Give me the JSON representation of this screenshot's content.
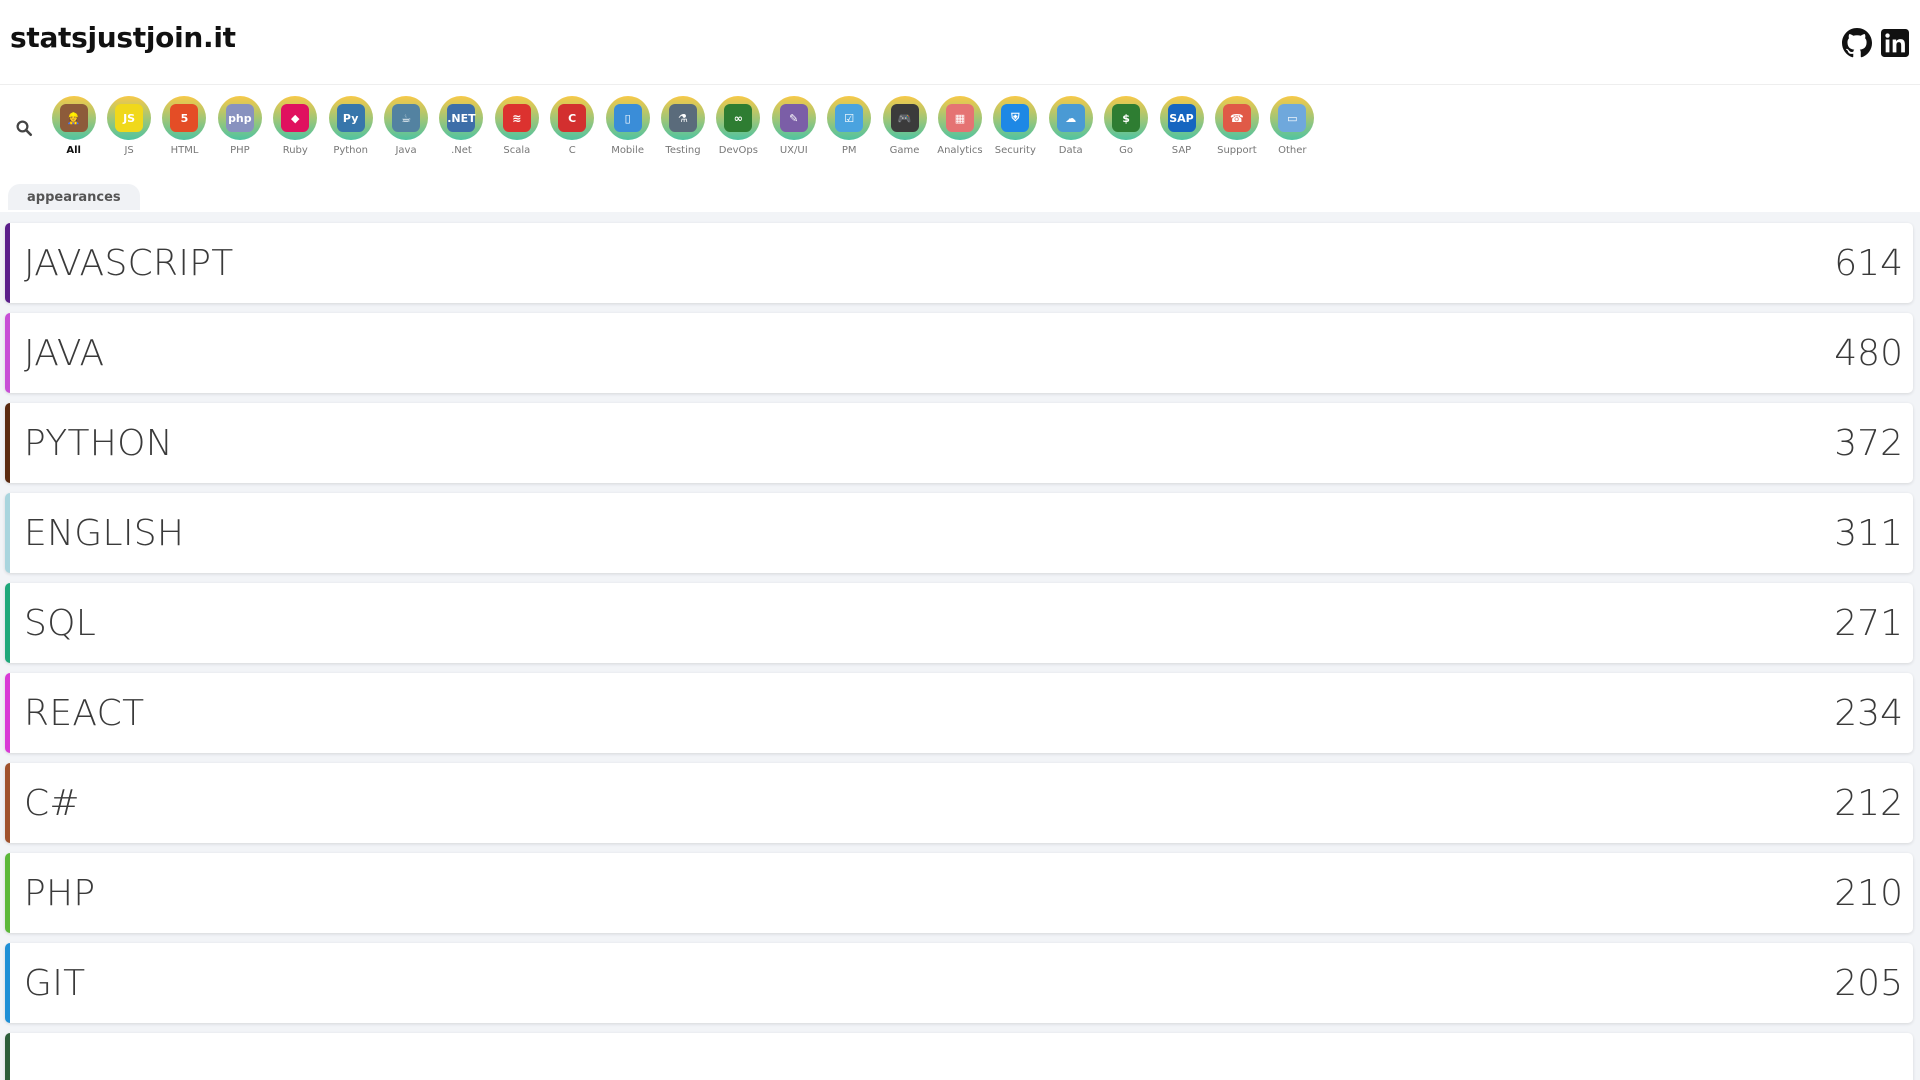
{
  "header": {
    "brand": "statsjustjoin.it",
    "github_icon": "github-icon",
    "linkedin_icon": "linkedin-icon"
  },
  "categories": [
    {
      "label": "All",
      "icon": "all-icon",
      "color": "#8d5b3a",
      "glyph": "👷",
      "active": true
    },
    {
      "label": "JS",
      "icon": "js-icon",
      "color": "#f0d81b",
      "glyph": "JS"
    },
    {
      "label": "HTML",
      "icon": "html-icon",
      "color": "#e44d26",
      "glyph": "5"
    },
    {
      "label": "PHP",
      "icon": "php-icon",
      "color": "#8892bf",
      "glyph": "php"
    },
    {
      "label": "Ruby",
      "icon": "ruby-icon",
      "color": "#e0115f",
      "glyph": "◆"
    },
    {
      "label": "Python",
      "icon": "python-icon",
      "color": "#3776ab",
      "glyph": "Py"
    },
    {
      "label": "Java",
      "icon": "java-icon",
      "color": "#5382a1",
      "glyph": "☕"
    },
    {
      "label": ".Net",
      "icon": "dotnet-icon",
      "color": "#3d6ea8",
      "glyph": ".NET"
    },
    {
      "label": "Scala",
      "icon": "scala-icon",
      "color": "#dc322f",
      "glyph": "≋"
    },
    {
      "label": "C",
      "icon": "c-icon",
      "color": "#d32f2f",
      "glyph": "C"
    },
    {
      "label": "Mobile",
      "icon": "mobile-icon",
      "color": "#3a8dd8",
      "glyph": "▯"
    },
    {
      "label": "Testing",
      "icon": "testing-icon",
      "color": "#5a6b7b",
      "glyph": "⚗"
    },
    {
      "label": "DevOps",
      "icon": "devops-icon",
      "color": "#2e7d32",
      "glyph": "∞"
    },
    {
      "label": "UX/UI",
      "icon": "uxui-icon",
      "color": "#7b5ea7",
      "glyph": "✎"
    },
    {
      "label": "PM",
      "icon": "pm-icon",
      "color": "#4aa3df",
      "glyph": "☑"
    },
    {
      "label": "Game",
      "icon": "game-icon",
      "color": "#3b3b3b",
      "glyph": "🎮"
    },
    {
      "label": "Analytics",
      "icon": "analytics-icon",
      "color": "#e57373",
      "glyph": "▦"
    },
    {
      "label": "Security",
      "icon": "security-icon",
      "color": "#1e88e5",
      "glyph": "⛨"
    },
    {
      "label": "Data",
      "icon": "data-icon",
      "color": "#4a9ad4",
      "glyph": "☁"
    },
    {
      "label": "Go",
      "icon": "go-icon",
      "color": "#2e7d32",
      "glyph": "$"
    },
    {
      "label": "SAP",
      "icon": "sap-icon",
      "color": "#1565c0",
      "glyph": "SAP"
    },
    {
      "label": "Support",
      "icon": "support-icon",
      "color": "#e05a47",
      "glyph": "☎"
    },
    {
      "label": "Other",
      "icon": "other-icon",
      "color": "#6fa8dc",
      "glyph": "▭"
    }
  ],
  "tabs": [
    {
      "label": "appearances"
    }
  ],
  "skills": [
    {
      "name": "JAVASCRIPT",
      "count": "614",
      "color": "#5b1f8a"
    },
    {
      "name": "JAVA",
      "count": "480",
      "color": "#c84fd6"
    },
    {
      "name": "PYTHON",
      "count": "372",
      "color": "#5a2a10"
    },
    {
      "name": "ENGLISH",
      "count": "311",
      "color": "#a9d5de"
    },
    {
      "name": "SQL",
      "count": "271",
      "color": "#1fa87a"
    },
    {
      "name": "REACT",
      "count": "234",
      "color": "#d93ad6"
    },
    {
      "name": "C#",
      "count": "212",
      "color": "#a0522d"
    },
    {
      "name": "PHP",
      "count": "210",
      "color": "#5cb83a"
    },
    {
      "name": "GIT",
      "count": "205",
      "color": "#1e8fd6"
    },
    {
      "name": "",
      "count": "",
      "color": "#2e5e3a"
    }
  ]
}
